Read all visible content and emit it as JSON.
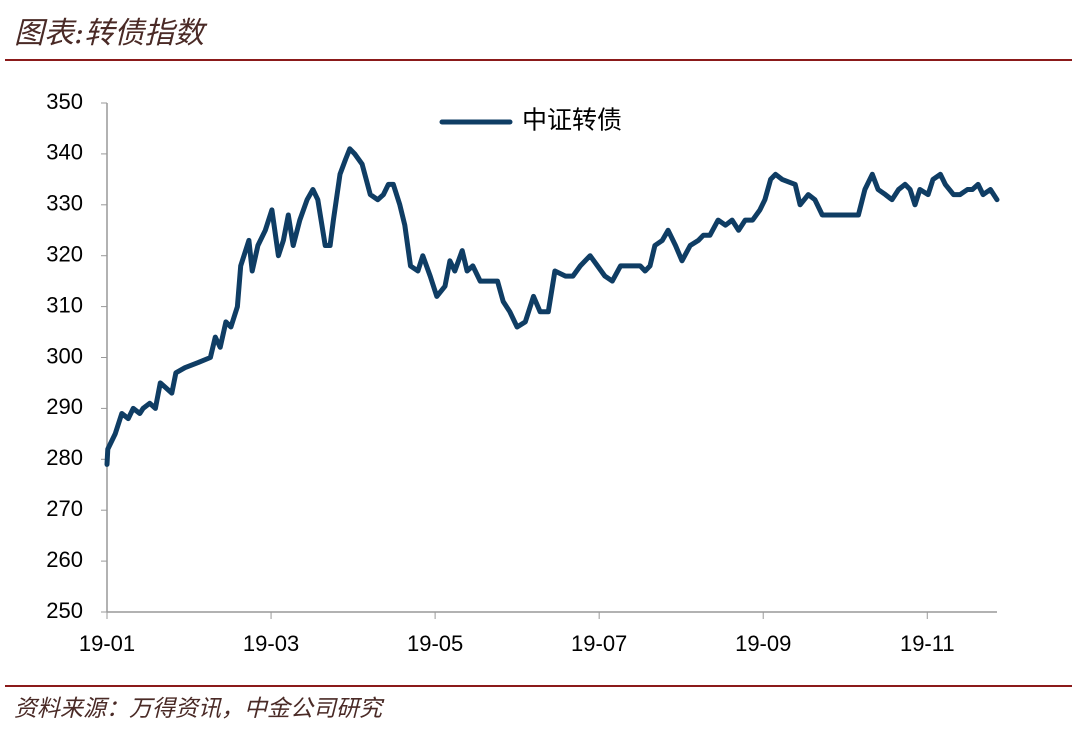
{
  "chart_data": {
    "type": "line",
    "title": "图表:转债指数",
    "source": "资料来源：万得资讯，中金公司研究",
    "x": [
      0,
      0.01,
      0.1,
      0.18,
      0.26,
      0.32,
      0.4,
      0.44,
      0.52,
      0.59,
      0.65,
      0.72,
      0.79,
      0.84,
      0.95,
      1.11,
      1.26,
      1.32,
      1.38,
      1.45,
      1.51,
      1.59,
      1.63,
      1.73,
      1.77,
      1.84,
      1.93,
      2.01,
      2.09,
      2.15,
      2.21,
      2.27,
      2.35,
      2.44,
      2.51,
      2.57,
      2.66,
      2.72,
      2.76,
      2.84,
      2.91,
      2.96,
      3.02,
      3.11,
      3.21,
      3.3,
      3.37,
      3.43,
      3.49,
      3.57,
      3.63,
      3.7,
      3.79,
      3.85,
      3.94,
      4.02,
      4.12,
      4.18,
      4.24,
      4.33,
      4.39,
      4.46,
      4.55,
      4.67,
      4.76,
      4.83,
      4.91,
      5.0,
      5.1,
      5.2,
      5.28,
      5.38,
      5.46,
      5.59,
      5.68,
      5.77,
      5.89,
      5.98,
      6.07,
      6.16,
      6.26,
      6.38,
      6.5,
      6.56,
      6.62,
      6.68,
      6.77,
      6.84,
      6.93,
      7.01,
      7.11,
      7.21,
      7.27,
      7.35,
      7.45,
      7.54,
      7.62,
      7.7,
      7.78,
      7.87,
      7.96,
      8.02,
      8.09,
      8.15,
      8.23,
      8.39,
      8.45,
      8.55,
      8.63,
      8.72,
      8.82,
      9.0,
      9.16,
      9.24,
      9.33,
      9.4,
      9.49,
      9.57,
      9.65,
      9.73,
      9.79,
      9.85,
      9.91,
      10.01,
      10.07,
      10.16,
      10.22,
      10.32,
      10.4,
      10.49,
      10.55,
      10.62,
      10.68,
      10.77,
      10.85
    ],
    "series": [
      {
        "name": "中证转债",
        "color": "#0f3d64",
        "values": [
          279,
          282,
          285,
          289,
          288,
          290,
          289,
          290,
          291,
          290,
          295,
          294,
          293,
          297,
          298,
          299,
          300,
          304,
          302,
          307,
          306,
          310,
          318,
          323,
          317,
          322,
          325,
          329,
          320,
          323,
          328,
          322,
          327,
          331,
          333,
          331,
          322,
          322,
          327,
          336,
          339,
          341,
          340,
          338,
          332,
          331,
          332,
          334,
          334,
          330,
          326,
          318,
          317,
          320,
          316,
          312,
          314,
          319,
          317,
          321,
          317,
          318,
          315,
          315,
          315,
          311,
          309,
          306,
          307,
          312,
          309,
          309,
          317,
          316,
          316,
          318,
          320,
          318,
          316,
          315,
          318,
          318,
          318,
          317,
          318,
          322,
          323,
          325,
          322,
          319,
          322,
          323,
          324,
          324,
          327,
          326,
          327,
          325,
          327,
          327,
          329,
          331,
          335,
          336,
          335,
          334,
          330,
          332,
          331,
          328,
          328,
          328,
          328,
          333,
          336,
          333,
          332,
          331,
          333,
          334,
          333,
          330,
          333,
          332,
          335,
          336,
          334,
          332,
          332,
          333,
          333,
          334,
          332,
          333,
          331
        ]
      }
    ],
    "xlim": [
      0,
      10.85
    ],
    "xticks": [
      {
        "value": 0,
        "label": "19-01"
      },
      {
        "value": 2,
        "label": "19-03"
      },
      {
        "value": 4,
        "label": "19-05"
      },
      {
        "value": 6,
        "label": "19-07"
      },
      {
        "value": 8,
        "label": "19-09"
      },
      {
        "value": 10,
        "label": "19-11"
      }
    ],
    "ylim": [
      250,
      350
    ],
    "yticks": [
      250,
      260,
      270,
      280,
      290,
      300,
      310,
      320,
      330,
      340,
      350
    ],
    "grid": false,
    "legend": "upper center"
  }
}
